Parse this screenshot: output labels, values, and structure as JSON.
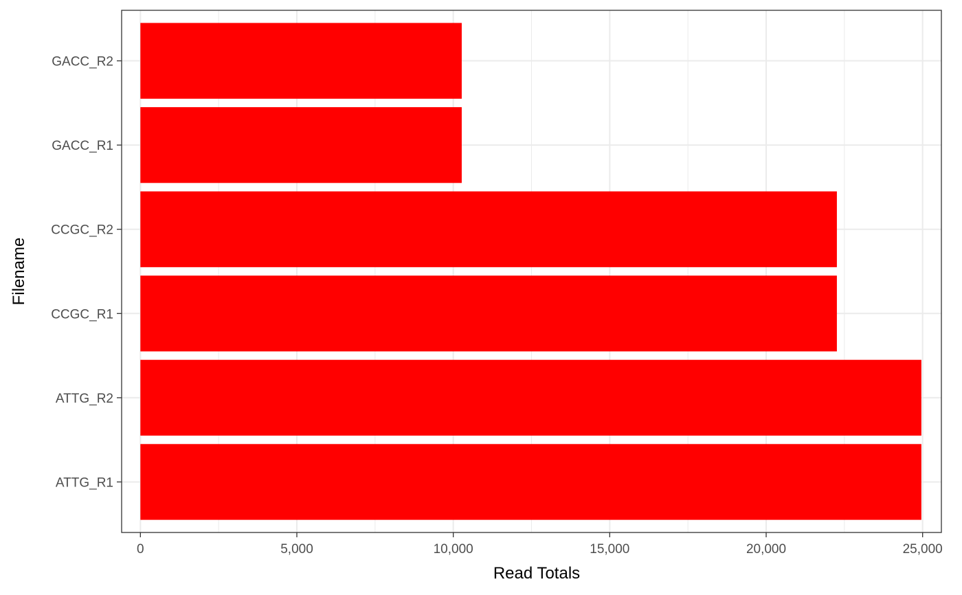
{
  "chart_data": {
    "type": "bar",
    "orientation": "horizontal",
    "categories": [
      "ATTG_R1",
      "ATTG_R2",
      "CCGC_R1",
      "CCGC_R2",
      "GACC_R1",
      "GACC_R2"
    ],
    "values": [
      24960,
      24960,
      22260,
      22260,
      10270,
      10270
    ],
    "xlabel": "Read Totals",
    "ylabel": "Filename",
    "xlim": [
      0,
      25000
    ],
    "x_ticks": [
      0,
      5000,
      10000,
      15000,
      20000,
      25000
    ],
    "x_tick_labels": [
      "0",
      "5,000",
      "10,000",
      "15,000",
      "20,000",
      "25,000"
    ],
    "grid": true,
    "bar_color": "#ff0000",
    "grid_color": "#ebebeb"
  }
}
